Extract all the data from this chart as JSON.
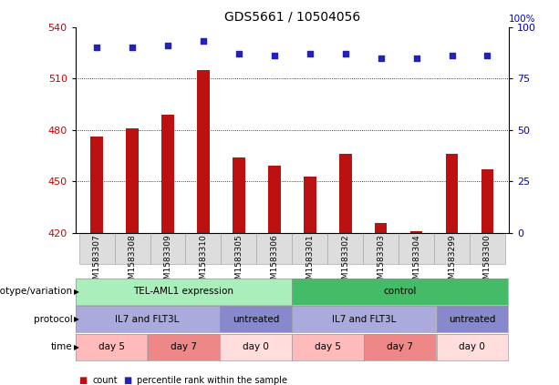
{
  "title": "GDS5661 / 10504056",
  "samples": [
    "GSM1583307",
    "GSM1583308",
    "GSM1583309",
    "GSM1583310",
    "GSM1583305",
    "GSM1583306",
    "GSM1583301",
    "GSM1583302",
    "GSM1583303",
    "GSM1583304",
    "GSM1583299",
    "GSM1583300"
  ],
  "counts": [
    476,
    481,
    489,
    515,
    464,
    459,
    453,
    466,
    426,
    421,
    466,
    457
  ],
  "percentiles": [
    90,
    90,
    91,
    93,
    87,
    86,
    87,
    87,
    85,
    85,
    86,
    86
  ],
  "ylim_left": [
    420,
    540
  ],
  "ylim_right": [
    0,
    100
  ],
  "yticks_left": [
    420,
    450,
    480,
    510,
    540
  ],
  "yticks_right": [
    0,
    25,
    50,
    75,
    100
  ],
  "bar_color": "#bb1111",
  "dot_color": "#2222bb",
  "bar_bottom": 420,
  "bar_width": 0.35,
  "genotype_groups": [
    {
      "label": "TEL-AML1 expression",
      "start": 0,
      "end": 6,
      "color": "#aaeebb"
    },
    {
      "label": "control",
      "start": 6,
      "end": 12,
      "color": "#44bb66"
    }
  ],
  "protocol_groups": [
    {
      "label": "IL7 and FLT3L",
      "start": 0,
      "end": 4,
      "color": "#aaaadd"
    },
    {
      "label": "untreated",
      "start": 4,
      "end": 6,
      "color": "#8888cc"
    },
    {
      "label": "IL7 and FLT3L",
      "start": 6,
      "end": 10,
      "color": "#aaaadd"
    },
    {
      "label": "untreated",
      "start": 10,
      "end": 12,
      "color": "#8888cc"
    }
  ],
  "time_groups": [
    {
      "label": "day 5",
      "start": 0,
      "end": 2,
      "color": "#ffbbbb"
    },
    {
      "label": "day 7",
      "start": 2,
      "end": 4,
      "color": "#ee8888"
    },
    {
      "label": "day 0",
      "start": 4,
      "end": 6,
      "color": "#ffdddd"
    },
    {
      "label": "day 5",
      "start": 6,
      "end": 8,
      "color": "#ffbbbb"
    },
    {
      "label": "day 7",
      "start": 8,
      "end": 10,
      "color": "#ee8888"
    },
    {
      "label": "day 0",
      "start": 10,
      "end": 12,
      "color": "#ffdddd"
    }
  ],
  "legend_count_color": "#bb1111",
  "legend_pct_color": "#2222bb",
  "background_color": "#ffffff",
  "label_color_left": "#cc0000",
  "label_color_right": "#0000cc",
  "gridline_ticks": [
    450,
    480,
    510
  ],
  "xticklabel_bg": "#dddddd"
}
